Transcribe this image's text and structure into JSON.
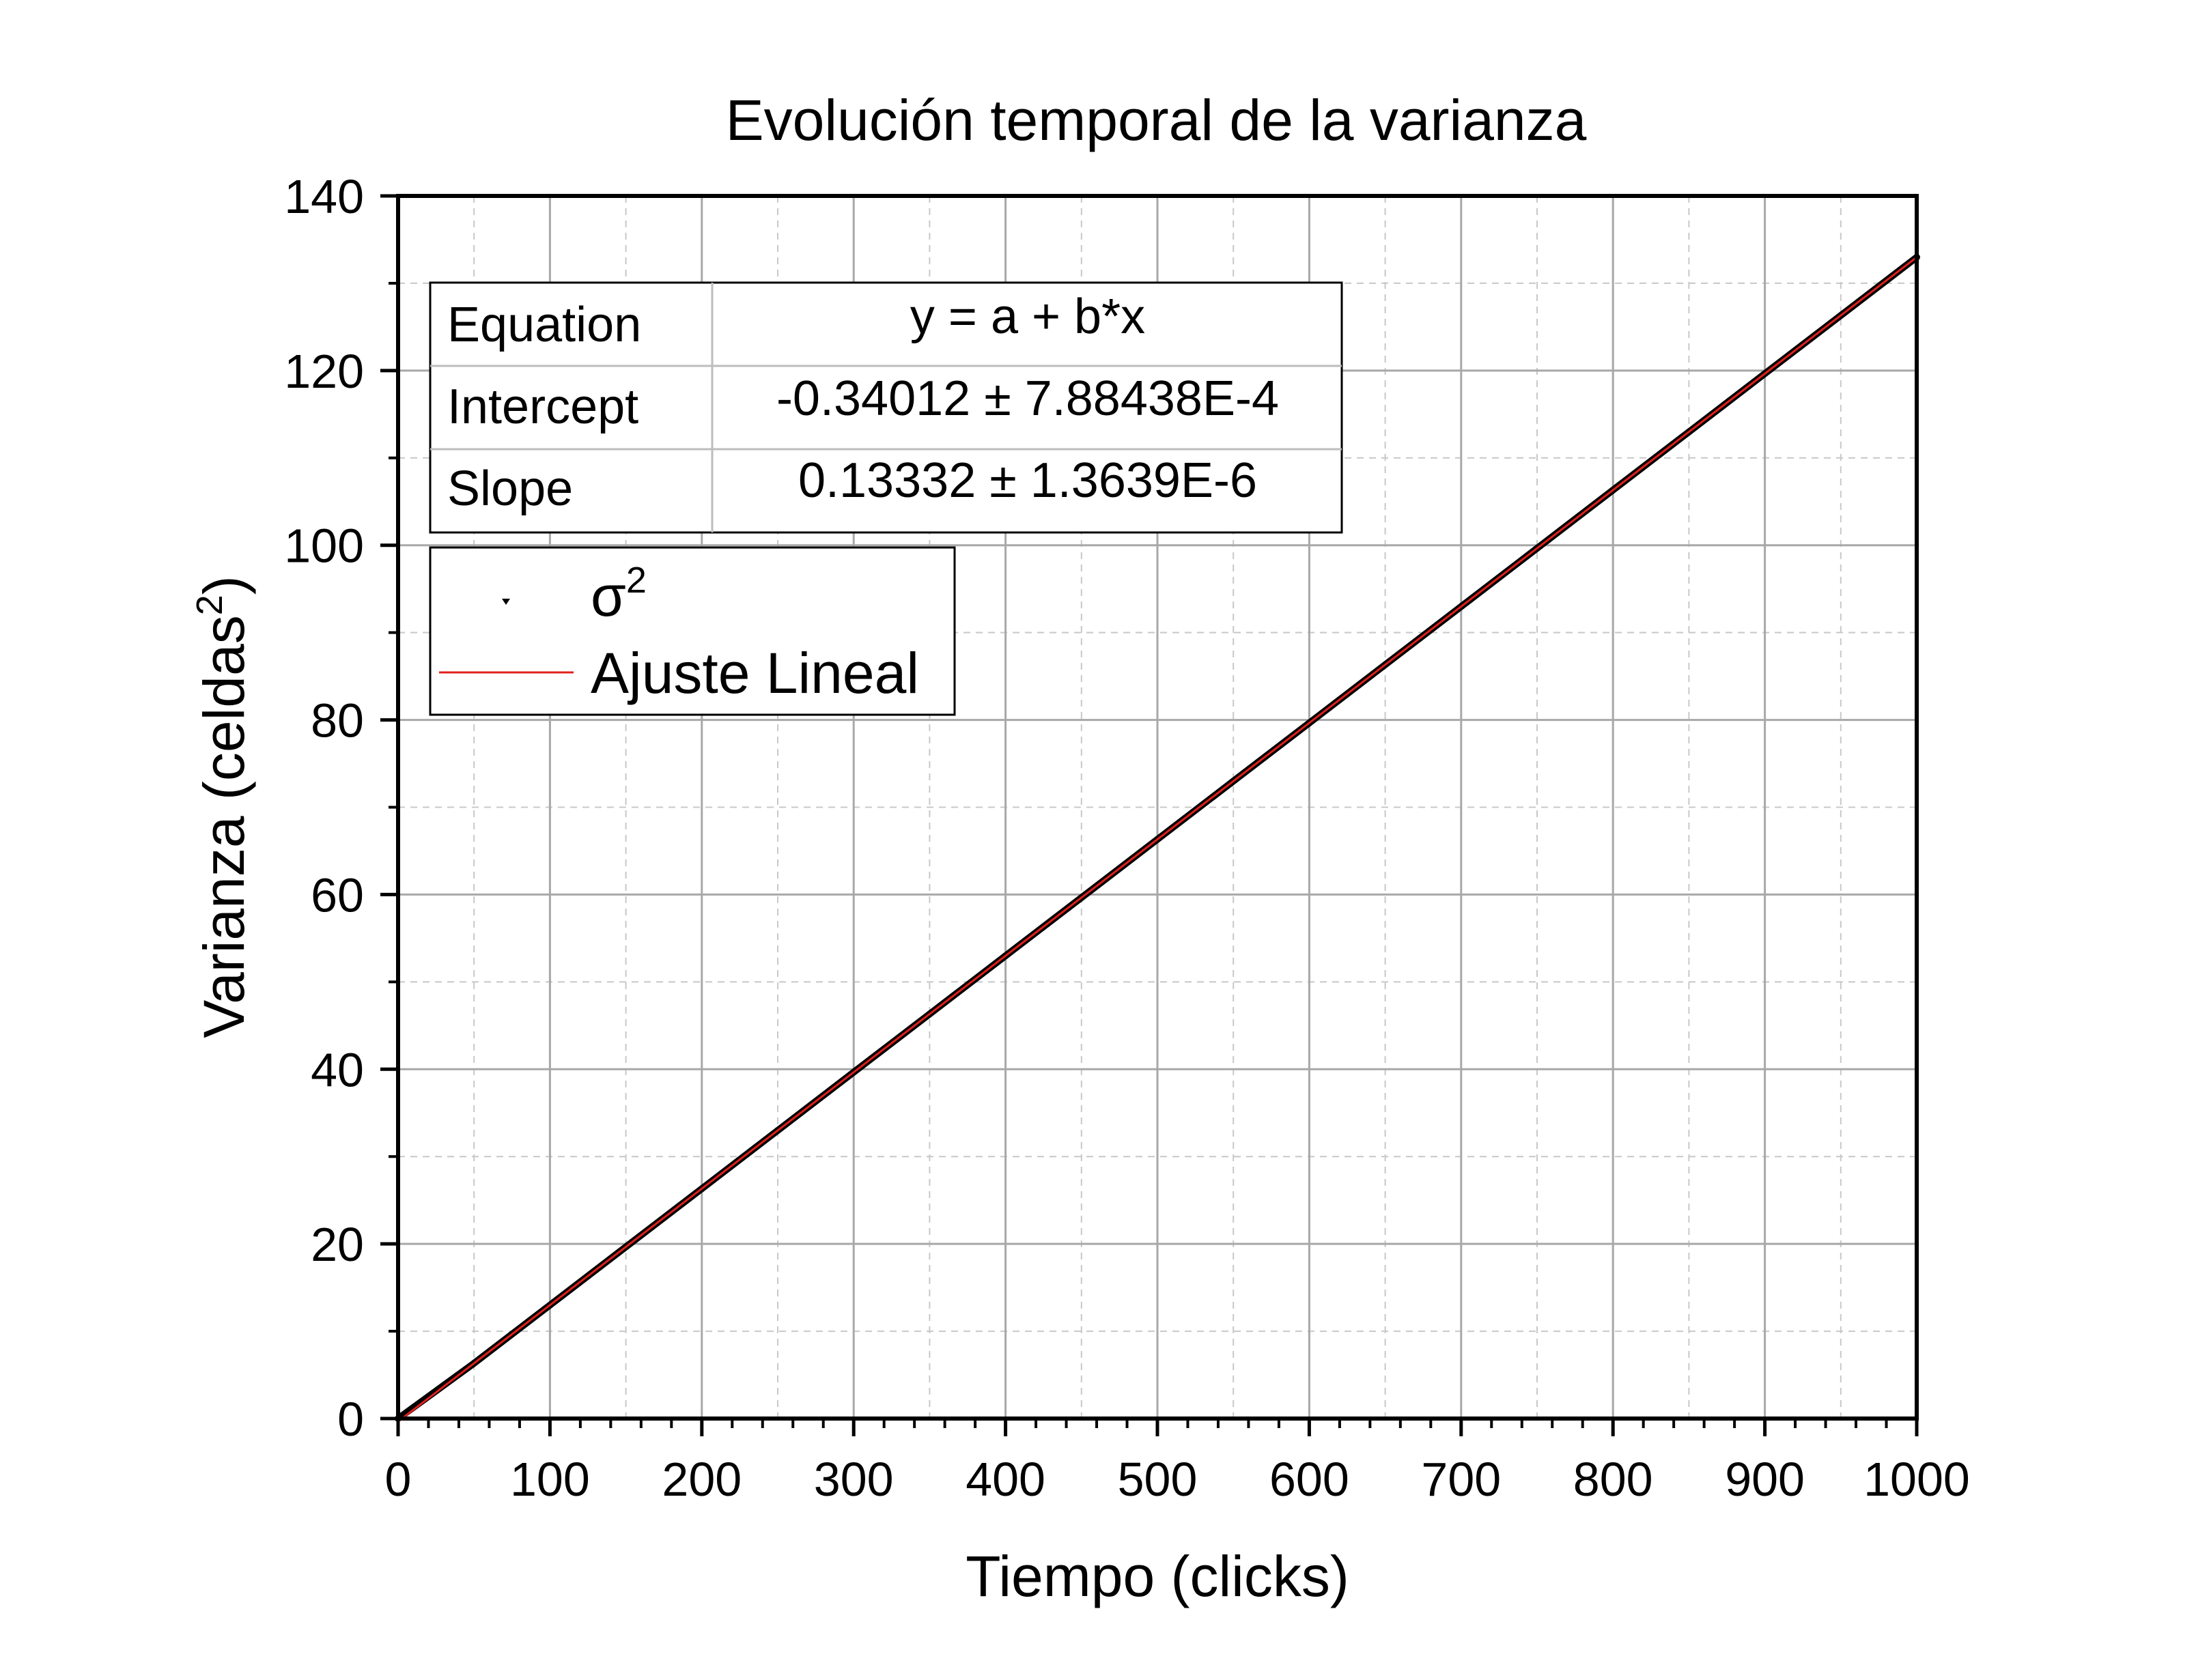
{
  "chart_data": {
    "type": "scatter",
    "title": "Evolución temporal de la varianza",
    "xlabel": "Tiempo (clicks)",
    "ylabel": "Varianza (celdas",
    "ylabel_sup": "2",
    "ylabel_close": ")",
    "xlim": [
      0,
      1000
    ],
    "ylim": [
      0,
      140
    ],
    "x_ticks": [
      0,
      100,
      200,
      300,
      400,
      500,
      600,
      700,
      800,
      900,
      1000
    ],
    "x_tick_labels": [
      "0",
      "100",
      "200",
      "300",
      "400",
      "500",
      "600",
      "700",
      "800",
      "900",
      "1000"
    ],
    "y_ticks": [
      0,
      20,
      40,
      60,
      80,
      100,
      120,
      140
    ],
    "y_tick_labels": [
      "0",
      "20",
      "40",
      "60",
      "80",
      "100",
      "120",
      "140"
    ],
    "grid": true,
    "legend_position": "upper-left",
    "series": [
      {
        "name": "σ",
        "name_sup": "2",
        "kind": "scatter",
        "color": "#000000",
        "x": [
          0,
          50,
          100,
          150,
          200,
          250,
          300,
          350,
          400,
          450,
          500,
          550,
          600,
          650,
          700,
          750,
          800,
          850,
          900,
          950,
          1000
        ],
        "y": [
          0,
          6.33,
          12.99,
          19.66,
          26.32,
          32.99,
          39.66,
          46.32,
          52.99,
          59.65,
          66.32,
          72.99,
          79.65,
          86.32,
          92.98,
          99.65,
          106.32,
          112.98,
          119.65,
          126.31,
          132.98
        ]
      },
      {
        "name": "Ajuste Lineal",
        "kind": "line",
        "color": "#e0201b",
        "x": [
          0,
          1000
        ],
        "y": [
          -0.34012,
          132.97988
        ]
      }
    ],
    "fit_table": {
      "rows": [
        {
          "label": "Equation",
          "value": "y = a + b*x"
        },
        {
          "label": "Intercept",
          "value": "-0.34012 ± 7.88438E-4"
        },
        {
          "label": "Slope",
          "value": "0.13332 ± 1.3639E-6"
        }
      ]
    }
  }
}
